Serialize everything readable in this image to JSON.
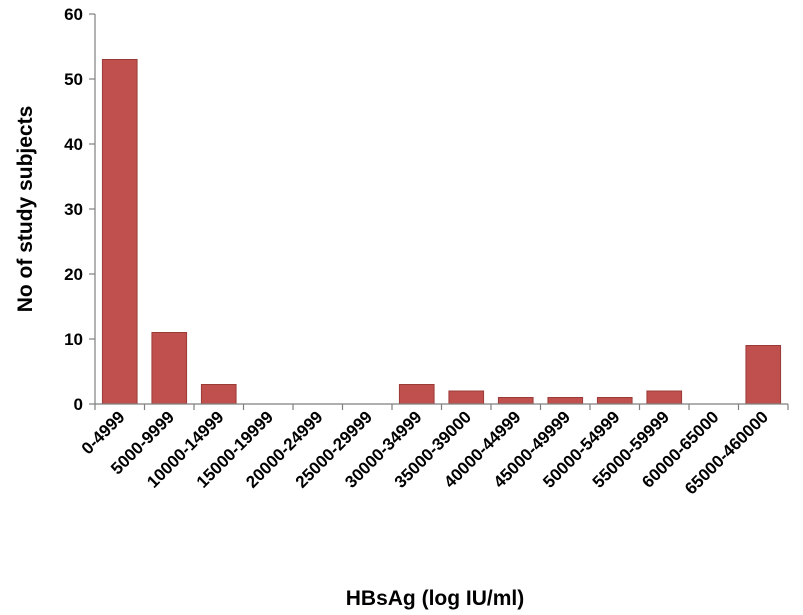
{
  "chart_data": {
    "type": "bar",
    "title": "",
    "xlabel": "HBsAg (log IU/ml)",
    "ylabel": "No of study subjects",
    "categories": [
      "0-4999",
      "5000-9999",
      "10000-14999",
      "15000-19999",
      "20000-24999",
      "25000-29999",
      "30000-34999",
      "35000-39000",
      "40000-44999",
      "45000-49999",
      "50000-54999",
      "55000-59999",
      "60000-65000",
      "65000-460000"
    ],
    "values": [
      53,
      11,
      3,
      0,
      0,
      0,
      3,
      2,
      1,
      1,
      1,
      2,
      0,
      9
    ],
    "ylim": [
      0,
      60
    ],
    "yticks": [
      0,
      10,
      20,
      30,
      40,
      50,
      60
    ],
    "grid": false,
    "legend": "none",
    "bar_color": "#c0504d"
  }
}
